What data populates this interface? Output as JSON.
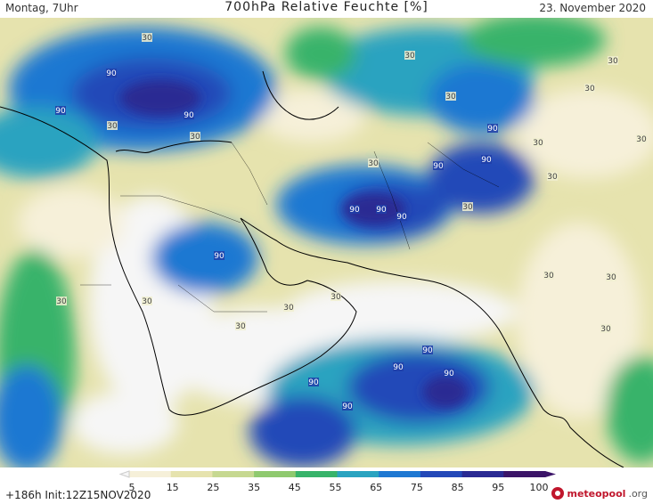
{
  "header": {
    "left": "Montag, 7Uhr",
    "title": "700hPa Relative Feuchte [%]",
    "right": "23. November 2020"
  },
  "footer": {
    "run": "+186h  Init:12Z15NOV2020"
  },
  "logo": {
    "brand": "meteopool",
    "domain": ".org"
  },
  "legend": {
    "ticks": [
      "5",
      "15",
      "25",
      "35",
      "45",
      "55",
      "65",
      "75",
      "85",
      "95",
      "100"
    ],
    "colors": [
      "#f6f6f6",
      "#f6f0d9",
      "#e6e3ae",
      "#c6d891",
      "#8fc96f",
      "#37b36a",
      "#2aa3c0",
      "#1e78d2",
      "#2348b8",
      "#2a2a93",
      "#3b1468"
    ]
  },
  "map_labels": [
    "90",
    "90",
    "90",
    "90",
    "90",
    "90",
    "90",
    "90",
    "90",
    "90",
    "90",
    "90",
    "90",
    "90",
    "90",
    "30",
    "30",
    "30",
    "30",
    "30",
    "30",
    "30",
    "30",
    "30",
    "30",
    "30",
    "30",
    "30",
    "30",
    "30",
    "30",
    "30",
    "30",
    "30",
    "30"
  ]
}
